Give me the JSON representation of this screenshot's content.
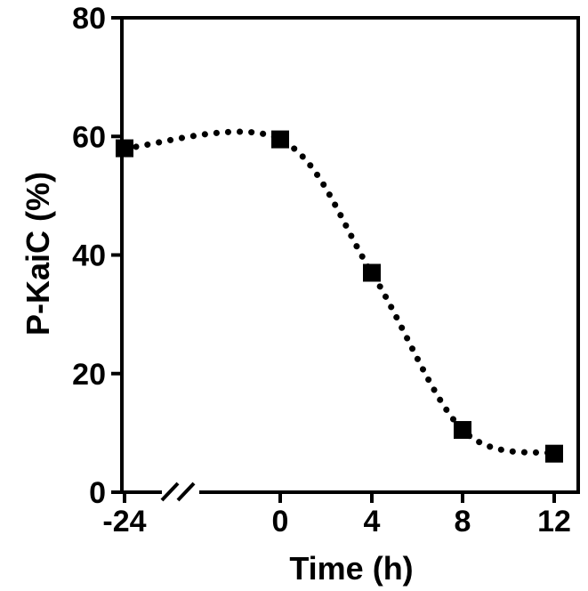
{
  "chart_data": {
    "type": "line",
    "title": "",
    "xlabel": "Time (h)",
    "ylabel": "P-KaiC (%)",
    "x_axis_break": true,
    "x_ticks": [
      "-24",
      "0",
      "4",
      "8",
      "12"
    ],
    "y_ticks": [
      "0",
      "20",
      "40",
      "60",
      "80"
    ],
    "ylim": [
      0,
      80
    ],
    "grid": false,
    "legend": "none",
    "line_style": "dotted",
    "marker": "square",
    "color": "#000000",
    "x": [
      "-24",
      "0",
      "4",
      "8",
      "12"
    ],
    "series": [
      {
        "values": [
          58,
          59.5,
          37,
          10.5,
          6.5
        ]
      }
    ]
  }
}
